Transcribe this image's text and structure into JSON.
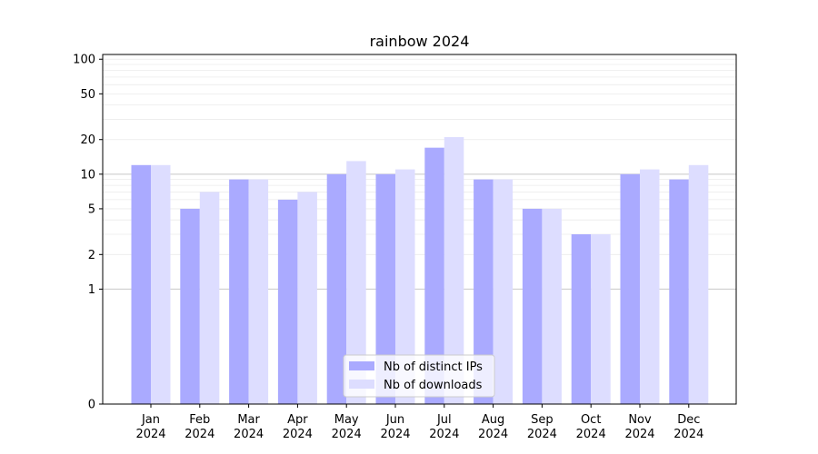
{
  "chart_data": {
    "type": "bar",
    "title": "rainbow 2024",
    "xlabel": "",
    "ylabel": "",
    "y_scale": "symlog",
    "y_ticks": [
      0,
      1,
      2,
      5,
      10,
      20,
      50,
      100
    ],
    "ylim": [
      0,
      110
    ],
    "grid": true,
    "legend_position": "bottom-center",
    "categories": [
      [
        "Jan",
        "2024"
      ],
      [
        "Feb",
        "2024"
      ],
      [
        "Mar",
        "2024"
      ],
      [
        "Apr",
        "2024"
      ],
      [
        "May",
        "2024"
      ],
      [
        "Jun",
        "2024"
      ],
      [
        "Jul",
        "2024"
      ],
      [
        "Aug",
        "2024"
      ],
      [
        "Sep",
        "2024"
      ],
      [
        "Oct",
        "2024"
      ],
      [
        "Nov",
        "2024"
      ],
      [
        "Dec",
        "2024"
      ]
    ],
    "series": [
      {
        "name": "Nb of distinct IPs",
        "color": "#aaaaff",
        "values": [
          12,
          5,
          9,
          6,
          10,
          10,
          17,
          9,
          5,
          3,
          10,
          9
        ]
      },
      {
        "name": "Nb of downloads",
        "color": "#ddddff",
        "values": [
          12,
          7,
          9,
          7,
          13,
          11,
          21,
          9,
          5,
          3,
          11,
          12
        ]
      }
    ]
  }
}
